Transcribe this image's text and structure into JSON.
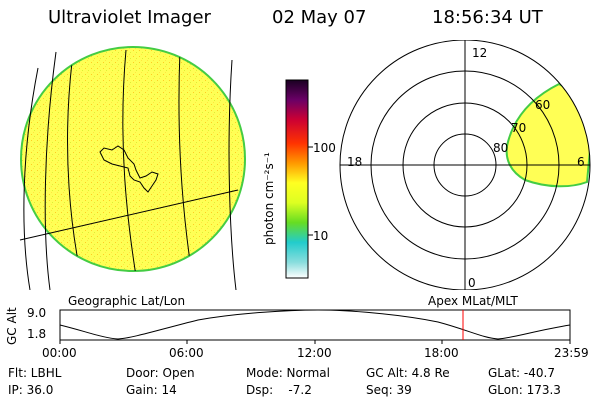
{
  "header": {
    "instrument": "Ultraviolet Imager",
    "date": "02 May 07",
    "time": "18:56:34 UT"
  },
  "colorbar": {
    "unit_label": "photon cm⁻²s⁻¹",
    "ticks": [
      "100",
      "10"
    ]
  },
  "polar_plot": {
    "mlt_labels": {
      "top": "12",
      "left": "18",
      "right": "6",
      "bottom": "0"
    },
    "lat_labels": [
      "60",
      "70",
      "80"
    ]
  },
  "panel_labels": {
    "left": "Geographic Lat/Lon",
    "right": "Apex MLat/MLT"
  },
  "altitude_plot": {
    "axis_label": "GC Alt",
    "y_ticks": [
      "9.0",
      "1.8"
    ],
    "x_ticks": [
      "00:00",
      "06:00",
      "12:00",
      "18:00",
      "23:59"
    ],
    "current_time_marker_color": "#ff0000"
  },
  "status": {
    "row1": {
      "flt": "Flt: LBHL",
      "door": "Door: Open",
      "mode": "Mode: Normal",
      "gc_alt": "GC Alt: 4.8 Re",
      "glat": "GLat: -40.7"
    },
    "row2": {
      "ip": "IP: 36.0",
      "gain": "Gain: 14",
      "dsp": "Dsp:    -7.2",
      "seq": "Seq: 39",
      "glon": "GLon: 173.3"
    }
  },
  "colors": {
    "disk_fill": "#ffff44",
    "disk_edge": "#44cc44",
    "marker": "#ff0000"
  }
}
